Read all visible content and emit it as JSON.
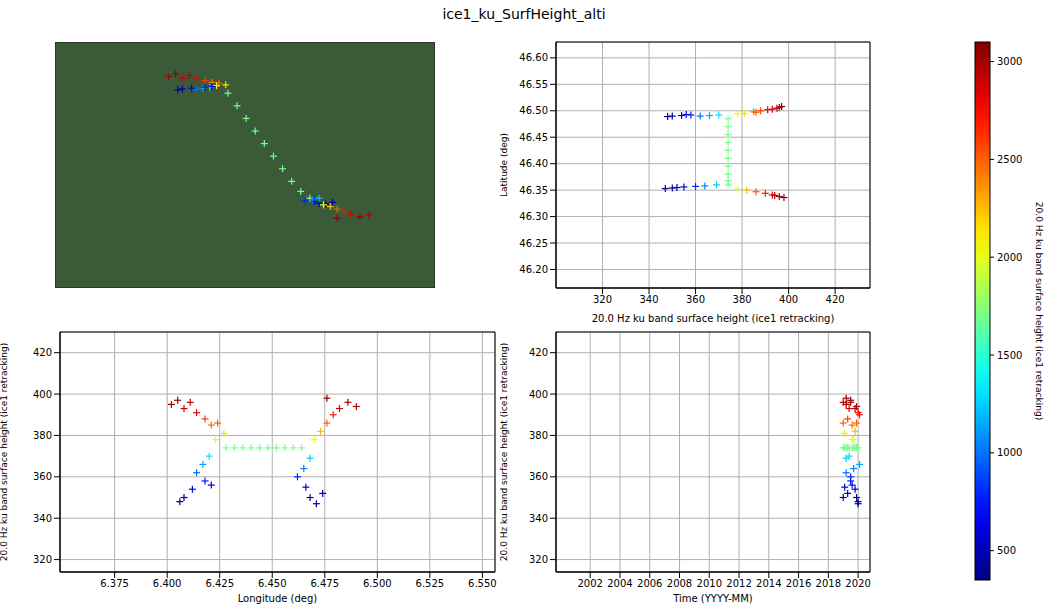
{
  "title": "ice1_ku_SurfHeight_alti",
  "colorbar": {
    "label": "20.0 Hz ku band surface height (ice1 retracking)",
    "range": [
      350,
      3100
    ],
    "ticks": [
      500,
      1000,
      1500,
      2000,
      2500,
      3000
    ]
  },
  "chart_data": [
    {
      "type": "map",
      "marker": "plus",
      "grid": true,
      "tick_labels": false,
      "xlim": [
        6.352,
        6.519
      ],
      "ylim": [
        46.253,
        46.546
      ],
      "xticks": [
        6.36,
        6.38,
        6.4,
        6.42,
        6.44,
        6.46,
        6.48,
        6.5
      ],
      "yticks": [
        46.28,
        46.32,
        46.36,
        46.4,
        46.44,
        46.48,
        46.52
      ],
      "x": [
        6.402,
        6.405,
        6.408,
        6.411,
        6.414,
        6.418,
        6.421,
        6.424,
        6.427,
        6.423,
        6.42,
        6.417,
        6.414,
        6.418,
        6.412,
        6.408,
        6.406,
        6.421,
        6.428,
        6.432,
        6.436,
        6.44,
        6.444,
        6.448,
        6.452,
        6.456,
        6.46,
        6.464,
        6.462,
        6.466,
        6.468,
        6.471,
        6.474,
        6.465,
        6.468,
        6.47,
        6.473,
        6.476,
        6.479,
        6.482,
        6.486,
        6.49,
        6.476
      ],
      "y": [
        46.505,
        46.508,
        46.503,
        46.506,
        46.502,
        46.5,
        46.498,
        46.497,
        46.495,
        46.494,
        46.492,
        46.491,
        46.49,
        46.492,
        46.491,
        46.49,
        46.489,
        46.493,
        46.485,
        46.47,
        46.455,
        46.44,
        46.425,
        46.41,
        46.395,
        46.38,
        46.368,
        46.36,
        46.357,
        46.356,
        46.354,
        46.353,
        46.355,
        46.358,
        46.36,
        46.352,
        46.35,
        46.347,
        46.344,
        46.341,
        46.338,
        46.34,
        46.336
      ],
      "color_values": [
        3000,
        3050,
        2900,
        2950,
        2800,
        2600,
        2450,
        2500,
        2150,
        2000,
        1300,
        1150,
        1000,
        750,
        600,
        450,
        400,
        650,
        1700,
        1700,
        1700,
        1700,
        1700,
        1700,
        1700,
        1700,
        1700,
        1700,
        800,
        600,
        450,
        380,
        500,
        1050,
        1250,
        2000,
        2250,
        2500,
        2700,
        2850,
        3000,
        2950,
        3050
      ]
    },
    {
      "type": "scatter",
      "marker": "plus",
      "grid": true,
      "xlabel": "20.0 Hz ku band surface height (ice1 retracking)",
      "ylabel": "Latitude (deg)",
      "xlim": [
        300,
        435
      ],
      "ylim": [
        46.165,
        46.63
      ],
      "xticks": [
        320,
        340,
        360,
        380,
        400,
        420
      ],
      "yticks": [
        {
          "value": 46.2,
          "label": "46.20"
        },
        46.25,
        {
          "value": 46.3,
          "label": "46.30"
        },
        46.35,
        {
          "value": 46.4,
          "label": "46.40"
        },
        46.45,
        {
          "value": 46.5,
          "label": "46.50"
        },
        46.55,
        {
          "value": 46.6,
          "label": "46.60"
        }
      ],
      "x": [
        395,
        397,
        393,
        396,
        391,
        388,
        385,
        386,
        381,
        378,
        370,
        366,
        362,
        358,
        354,
        350,
        348,
        356,
        374,
        374,
        374,
        374,
        374,
        374,
        374,
        374,
        374,
        374,
        360,
        355,
        350,
        347,
        352,
        364,
        369,
        378,
        382,
        386,
        390,
        393,
        396,
        394,
        398
      ],
      "y": [
        46.505,
        46.508,
        46.503,
        46.506,
        46.502,
        46.5,
        46.498,
        46.497,
        46.495,
        46.494,
        46.492,
        46.491,
        46.49,
        46.492,
        46.491,
        46.49,
        46.489,
        46.493,
        46.485,
        46.47,
        46.455,
        46.44,
        46.425,
        46.41,
        46.395,
        46.38,
        46.368,
        46.36,
        46.357,
        46.356,
        46.354,
        46.353,
        46.355,
        46.358,
        46.36,
        46.352,
        46.35,
        46.347,
        46.344,
        46.341,
        46.338,
        46.34,
        46.336
      ],
      "color_values": [
        3000,
        3050,
        2900,
        2950,
        2800,
        2600,
        2450,
        2500,
        2150,
        2000,
        1300,
        1150,
        1000,
        750,
        600,
        450,
        400,
        650,
        1700,
        1700,
        1700,
        1700,
        1700,
        1700,
        1700,
        1700,
        1700,
        1700,
        800,
        600,
        450,
        380,
        500,
        1050,
        1250,
        2000,
        2250,
        2500,
        2700,
        2850,
        3000,
        2950,
        3050
      ]
    },
    {
      "type": "scatter",
      "marker": "plus",
      "grid": true,
      "xlabel": "Longitude (deg)",
      "ylabel": "20.0 Hz ku band surface height (ice1 retracking)",
      "xlim": [
        6.349,
        6.556
      ],
      "ylim": [
        314,
        430
      ],
      "xticks": [
        6.375,
        {
          "value": 6.4,
          "label": "6.400"
        },
        6.425,
        {
          "value": 6.45,
          "label": "6.450"
        },
        6.475,
        {
          "value": 6.5,
          "label": "6.500"
        },
        6.525,
        {
          "value": 6.55,
          "label": "6.550"
        }
      ],
      "yticks": [
        320,
        340,
        360,
        380,
        400,
        420
      ],
      "x": [
        6.402,
        6.405,
        6.408,
        6.411,
        6.414,
        6.418,
        6.421,
        6.424,
        6.427,
        6.423,
        6.42,
        6.417,
        6.414,
        6.418,
        6.412,
        6.408,
        6.406,
        6.421,
        6.428,
        6.432,
        6.436,
        6.44,
        6.444,
        6.448,
        6.452,
        6.456,
        6.46,
        6.464,
        6.462,
        6.466,
        6.468,
        6.471,
        6.474,
        6.465,
        6.468,
        6.47,
        6.473,
        6.476,
        6.479,
        6.482,
        6.486,
        6.49,
        6.476
      ],
      "y": [
        395,
        397,
        393,
        396,
        391,
        388,
        385,
        386,
        381,
        378,
        370,
        366,
        362,
        358,
        354,
        350,
        348,
        356,
        374,
        374,
        374,
        374,
        374,
        374,
        374,
        374,
        374,
        374,
        360,
        355,
        350,
        347,
        352,
        364,
        369,
        378,
        382,
        386,
        390,
        393,
        396,
        394,
        398
      ],
      "color_values": [
        3000,
        3050,
        2900,
        2950,
        2800,
        2600,
        2450,
        2500,
        2150,
        2000,
        1300,
        1150,
        1000,
        750,
        600,
        450,
        400,
        650,
        1700,
        1700,
        1700,
        1700,
        1700,
        1700,
        1700,
        1700,
        1700,
        1700,
        800,
        600,
        450,
        380,
        500,
        1050,
        1250,
        2000,
        2250,
        2500,
        2700,
        2850,
        3000,
        2950,
        3050
      ]
    },
    {
      "type": "scatter",
      "marker": "plus",
      "grid": true,
      "xlabel": "Time (YYYY-MM)",
      "ylabel": "20.0 Hz ku band surface height (ice1 retracking)",
      "xlim": [
        1999.7,
        2020.8
      ],
      "ylim": [
        314,
        430
      ],
      "xticks": [
        2002,
        2004,
        2006,
        2008,
        2010,
        2012,
        2014,
        2016,
        2018,
        2020
      ],
      "yticks": [
        320,
        340,
        360,
        380,
        400,
        420
      ],
      "x": [
        2019.2,
        2019.5,
        2019.8,
        2019.0,
        2020.0,
        2019.3,
        2019.6,
        2019.9,
        2019.1,
        2019.7,
        2019.4,
        2020.1,
        2019.2,
        2019.5,
        2019.8,
        2019.0,
        2020.0,
        2019.6,
        2019.3,
        2019.9,
        2019.1,
        2019.6,
        2020.0,
        2019.2,
        2019.7,
        2019.4,
        2019.8,
        2019.0,
        2019.5,
        2019.1,
        2019.9,
        2020.0,
        2019.3,
        2019.7,
        2019.2,
        2019.6,
        2019.8,
        2019.0,
        2020.1,
        2019.4,
        2019.5,
        2019.9,
        2019.2
      ],
      "y": [
        395,
        397,
        393,
        396,
        391,
        388,
        385,
        386,
        381,
        378,
        370,
        366,
        362,
        358,
        354,
        350,
        348,
        356,
        374,
        374,
        374,
        374,
        374,
        374,
        374,
        374,
        374,
        374,
        360,
        355,
        350,
        347,
        352,
        364,
        369,
        378,
        382,
        386,
        390,
        393,
        396,
        394,
        398
      ],
      "color_values": [
        3000,
        3050,
        2900,
        2950,
        2800,
        2600,
        2450,
        2500,
        2150,
        2000,
        1300,
        1150,
        1000,
        750,
        600,
        450,
        400,
        650,
        1700,
        1700,
        1700,
        1700,
        1700,
        1700,
        1700,
        1700,
        1700,
        1700,
        800,
        600,
        450,
        380,
        500,
        1050,
        1250,
        2000,
        2250,
        2500,
        2700,
        2850,
        3000,
        2950,
        3050
      ]
    }
  ]
}
